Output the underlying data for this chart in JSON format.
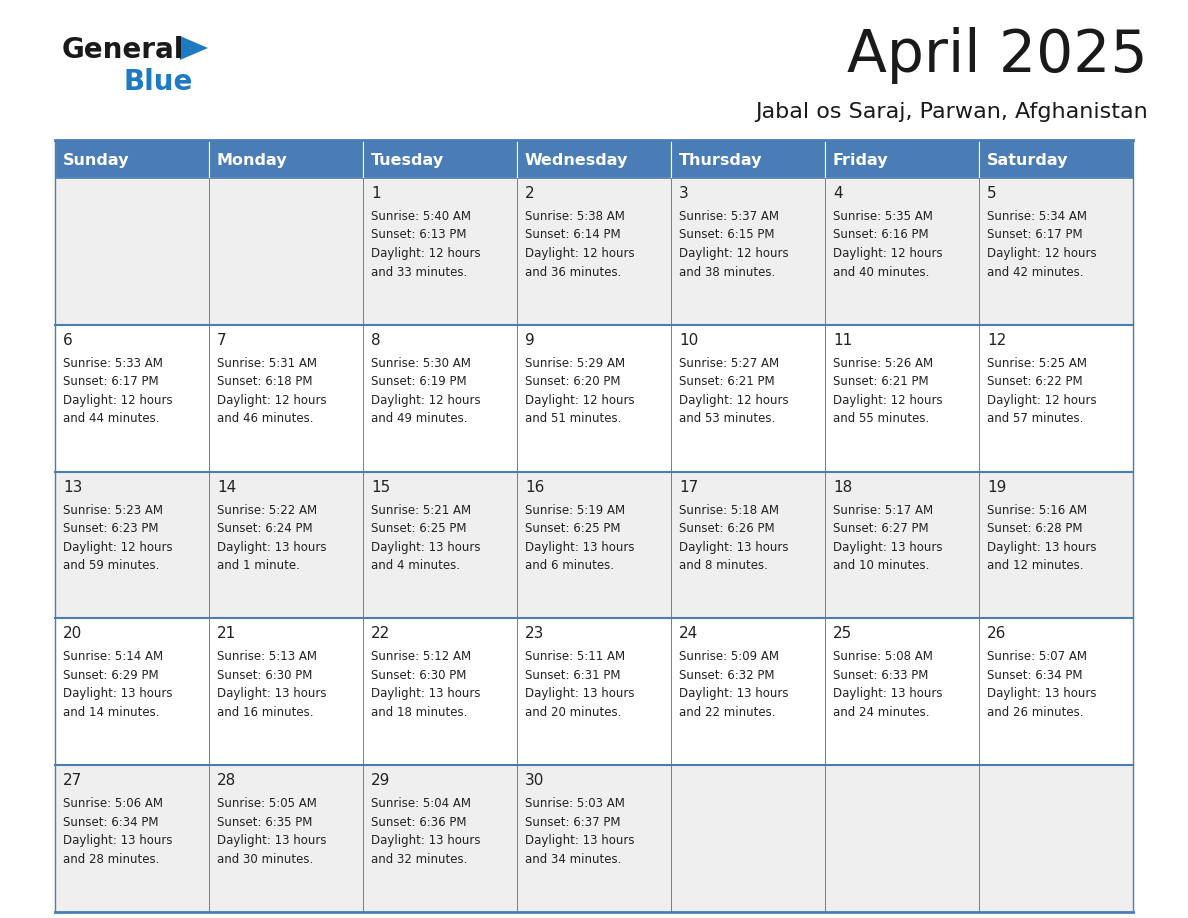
{
  "title": "April 2025",
  "subtitle": "Jabal os Saraj, Parwan, Afghanistan",
  "header_bg": "#4A7DB5",
  "header_text_color": "#FFFFFF",
  "cell_bg_odd": "#EFEFEF",
  "cell_bg_even": "#FFFFFF",
  "border_color": "#4A7DB5",
  "text_color": "#222222",
  "days_of_week": [
    "Sunday",
    "Monday",
    "Tuesday",
    "Wednesday",
    "Thursday",
    "Friday",
    "Saturday"
  ],
  "calendar_data": [
    [
      {
        "day": "",
        "lines": []
      },
      {
        "day": "",
        "lines": []
      },
      {
        "day": "1",
        "lines": [
          "Sunrise: 5:40 AM",
          "Sunset: 6:13 PM",
          "Daylight: 12 hours",
          "and 33 minutes."
        ]
      },
      {
        "day": "2",
        "lines": [
          "Sunrise: 5:38 AM",
          "Sunset: 6:14 PM",
          "Daylight: 12 hours",
          "and 36 minutes."
        ]
      },
      {
        "day": "3",
        "lines": [
          "Sunrise: 5:37 AM",
          "Sunset: 6:15 PM",
          "Daylight: 12 hours",
          "and 38 minutes."
        ]
      },
      {
        "day": "4",
        "lines": [
          "Sunrise: 5:35 AM",
          "Sunset: 6:16 PM",
          "Daylight: 12 hours",
          "and 40 minutes."
        ]
      },
      {
        "day": "5",
        "lines": [
          "Sunrise: 5:34 AM",
          "Sunset: 6:17 PM",
          "Daylight: 12 hours",
          "and 42 minutes."
        ]
      }
    ],
    [
      {
        "day": "6",
        "lines": [
          "Sunrise: 5:33 AM",
          "Sunset: 6:17 PM",
          "Daylight: 12 hours",
          "and 44 minutes."
        ]
      },
      {
        "day": "7",
        "lines": [
          "Sunrise: 5:31 AM",
          "Sunset: 6:18 PM",
          "Daylight: 12 hours",
          "and 46 minutes."
        ]
      },
      {
        "day": "8",
        "lines": [
          "Sunrise: 5:30 AM",
          "Sunset: 6:19 PM",
          "Daylight: 12 hours",
          "and 49 minutes."
        ]
      },
      {
        "day": "9",
        "lines": [
          "Sunrise: 5:29 AM",
          "Sunset: 6:20 PM",
          "Daylight: 12 hours",
          "and 51 minutes."
        ]
      },
      {
        "day": "10",
        "lines": [
          "Sunrise: 5:27 AM",
          "Sunset: 6:21 PM",
          "Daylight: 12 hours",
          "and 53 minutes."
        ]
      },
      {
        "day": "11",
        "lines": [
          "Sunrise: 5:26 AM",
          "Sunset: 6:21 PM",
          "Daylight: 12 hours",
          "and 55 minutes."
        ]
      },
      {
        "day": "12",
        "lines": [
          "Sunrise: 5:25 AM",
          "Sunset: 6:22 PM",
          "Daylight: 12 hours",
          "and 57 minutes."
        ]
      }
    ],
    [
      {
        "day": "13",
        "lines": [
          "Sunrise: 5:23 AM",
          "Sunset: 6:23 PM",
          "Daylight: 12 hours",
          "and 59 minutes."
        ]
      },
      {
        "day": "14",
        "lines": [
          "Sunrise: 5:22 AM",
          "Sunset: 6:24 PM",
          "Daylight: 13 hours",
          "and 1 minute."
        ]
      },
      {
        "day": "15",
        "lines": [
          "Sunrise: 5:21 AM",
          "Sunset: 6:25 PM",
          "Daylight: 13 hours",
          "and 4 minutes."
        ]
      },
      {
        "day": "16",
        "lines": [
          "Sunrise: 5:19 AM",
          "Sunset: 6:25 PM",
          "Daylight: 13 hours",
          "and 6 minutes."
        ]
      },
      {
        "day": "17",
        "lines": [
          "Sunrise: 5:18 AM",
          "Sunset: 6:26 PM",
          "Daylight: 13 hours",
          "and 8 minutes."
        ]
      },
      {
        "day": "18",
        "lines": [
          "Sunrise: 5:17 AM",
          "Sunset: 6:27 PM",
          "Daylight: 13 hours",
          "and 10 minutes."
        ]
      },
      {
        "day": "19",
        "lines": [
          "Sunrise: 5:16 AM",
          "Sunset: 6:28 PM",
          "Daylight: 13 hours",
          "and 12 minutes."
        ]
      }
    ],
    [
      {
        "day": "20",
        "lines": [
          "Sunrise: 5:14 AM",
          "Sunset: 6:29 PM",
          "Daylight: 13 hours",
          "and 14 minutes."
        ]
      },
      {
        "day": "21",
        "lines": [
          "Sunrise: 5:13 AM",
          "Sunset: 6:30 PM",
          "Daylight: 13 hours",
          "and 16 minutes."
        ]
      },
      {
        "day": "22",
        "lines": [
          "Sunrise: 5:12 AM",
          "Sunset: 6:30 PM",
          "Daylight: 13 hours",
          "and 18 minutes."
        ]
      },
      {
        "day": "23",
        "lines": [
          "Sunrise: 5:11 AM",
          "Sunset: 6:31 PM",
          "Daylight: 13 hours",
          "and 20 minutes."
        ]
      },
      {
        "day": "24",
        "lines": [
          "Sunrise: 5:09 AM",
          "Sunset: 6:32 PM",
          "Daylight: 13 hours",
          "and 22 minutes."
        ]
      },
      {
        "day": "25",
        "lines": [
          "Sunrise: 5:08 AM",
          "Sunset: 6:33 PM",
          "Daylight: 13 hours",
          "and 24 minutes."
        ]
      },
      {
        "day": "26",
        "lines": [
          "Sunrise: 5:07 AM",
          "Sunset: 6:34 PM",
          "Daylight: 13 hours",
          "and 26 minutes."
        ]
      }
    ],
    [
      {
        "day": "27",
        "lines": [
          "Sunrise: 5:06 AM",
          "Sunset: 6:34 PM",
          "Daylight: 13 hours",
          "and 28 minutes."
        ]
      },
      {
        "day": "28",
        "lines": [
          "Sunrise: 5:05 AM",
          "Sunset: 6:35 PM",
          "Daylight: 13 hours",
          "and 30 minutes."
        ]
      },
      {
        "day": "29",
        "lines": [
          "Sunrise: 5:04 AM",
          "Sunset: 6:36 PM",
          "Daylight: 13 hours",
          "and 32 minutes."
        ]
      },
      {
        "day": "30",
        "lines": [
          "Sunrise: 5:03 AM",
          "Sunset: 6:37 PM",
          "Daylight: 13 hours",
          "and 34 minutes."
        ]
      },
      {
        "day": "",
        "lines": []
      },
      {
        "day": "",
        "lines": []
      },
      {
        "day": "",
        "lines": []
      }
    ]
  ],
  "logo_color_general": "#1a1a1a",
  "logo_color_blue": "#1E7AC4",
  "logo_triangle_color": "#1E7AC4",
  "title_color": "#1a1a1a",
  "subtitle_color": "#1a1a1a"
}
